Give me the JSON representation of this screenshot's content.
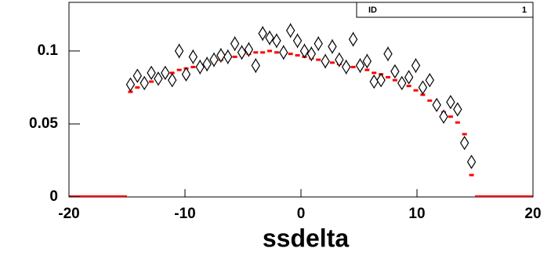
{
  "chart_data": {
    "type": "scatter",
    "x_label": "ssdelta",
    "stats": {
      "label": "ID",
      "value": "1"
    },
    "x": [
      -14.7,
      -14.1,
      -13.5,
      -12.9,
      -12.3,
      -11.7,
      -11.1,
      -10.5,
      -9.9,
      -9.3,
      -8.7,
      -8.1,
      -7.5,
      -6.9,
      -6.3,
      -5.7,
      -5.1,
      -4.5,
      -3.9,
      -3.3,
      -2.7,
      -2.1,
      -1.5,
      -0.9,
      -0.3,
      0.3,
      0.9,
      1.5,
      2.1,
      2.7,
      3.3,
      3.9,
      4.5,
      5.1,
      5.7,
      6.3,
      6.9,
      7.5,
      8.1,
      8.7,
      9.3,
      9.9,
      10.5,
      11.1,
      11.7,
      12.3,
      12.9,
      13.5,
      14.1,
      14.7
    ],
    "series": [
      {
        "color": "#ff0000",
        "marker": "dash",
        "values": [
          0.072,
          0.075,
          0.077,
          0.079,
          0.081,
          0.083,
          0.085,
          0.087,
          0.088,
          0.089,
          0.09,
          0.092,
          0.093,
          0.094,
          0.095,
          0.096,
          0.097,
          0.098,
          0.099,
          0.099,
          0.1,
          0.099,
          0.099,
          0.098,
          0.097,
          0.096,
          0.095,
          0.094,
          0.093,
          0.092,
          0.091,
          0.09,
          0.089,
          0.088,
          0.087,
          0.085,
          0.084,
          0.082,
          0.08,
          0.078,
          0.076,
          0.073,
          0.07,
          0.066,
          0.062,
          0.058,
          0.055,
          0.051,
          0.043,
          0.015
        ]
      },
      {
        "color": "#000000",
        "marker": "diamond",
        "values": [
          0.077,
          0.083,
          0.078,
          0.085,
          0.081,
          0.085,
          0.08,
          0.1,
          0.084,
          0.096,
          0.089,
          0.091,
          0.094,
          0.097,
          0.096,
          0.105,
          0.099,
          0.101,
          0.09,
          0.112,
          0.109,
          0.107,
          0.099,
          0.114,
          0.107,
          0.1,
          0.098,
          0.105,
          0.093,
          0.103,
          0.094,
          0.089,
          0.108,
          0.09,
          0.093,
          0.079,
          0.08,
          0.098,
          0.086,
          0.078,
          0.082,
          0.09,
          0.075,
          0.08,
          0.063,
          0.055,
          0.065,
          0.06,
          0.037,
          0.024
        ],
        "errors": [
          0.004,
          0.004,
          0.004,
          0.004,
          0.004,
          0.004,
          0.004,
          0.005,
          0.004,
          0.005,
          0.005,
          0.005,
          0.005,
          0.005,
          0.005,
          0.005,
          0.005,
          0.005,
          0.005,
          0.005,
          0.005,
          0.005,
          0.005,
          0.005,
          0.005,
          0.005,
          0.005,
          0.005,
          0.005,
          0.005,
          0.005,
          0.005,
          0.005,
          0.005,
          0.005,
          0.004,
          0.004,
          0.005,
          0.004,
          0.004,
          0.004,
          0.005,
          0.004,
          0.004,
          0.004,
          0.004,
          0.004,
          0.004,
          0.003,
          0.003
        ]
      }
    ],
    "xlim": [
      -20,
      20
    ],
    "xticks": [
      -20,
      -10,
      0,
      10,
      20
    ],
    "ylim": [
      0,
      0.1333
    ],
    "yticks": [
      0,
      0.05,
      0.1
    ]
  }
}
